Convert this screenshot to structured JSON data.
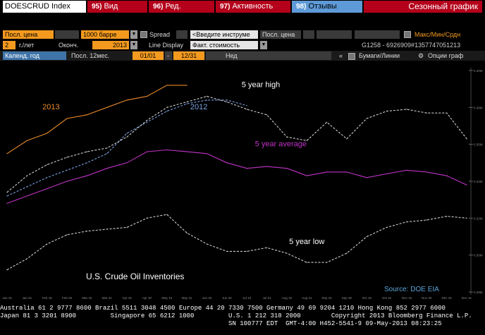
{
  "header": {
    "ticker": "DOESCRUD Index",
    "menu": [
      {
        "num": "95)",
        "label": "Вид"
      },
      {
        "num": "96)",
        "label": "Ред."
      },
      {
        "num": "97)",
        "label": "Активность"
      },
      {
        "num": "98)",
        "label": "Отзывы"
      }
    ],
    "title": "Сезонный график"
  },
  "row2": {
    "field1": "Посл. цена",
    "field2": "1000 барре",
    "spread": "Spread",
    "instrument": "<Введите инструме",
    "field3": "Посл. цена",
    "maxmin": "Макс/Мин/Срдн"
  },
  "row3": {
    "years": "2",
    "years_label": "г./лет",
    "end_label": "Оконч.",
    "end_year": "2013",
    "line_display": "Line Display",
    "value_type": "Факт. стоимость",
    "code": "G1258 - 6926909#1357747051213"
  },
  "row4": {
    "calendar": "Календ. год",
    "last12": "Посл. 12мес.",
    "from": "01/01",
    "to": "12/31",
    "ned": "Нед",
    "securities": "Бумаги/Линии",
    "chart_options": "Опции граф"
  },
  "chart_data": {
    "type": "line",
    "title": "U.S. Crude Oil Inventories",
    "source": "Source: DOE EIA",
    "x_ticks": [
      "Jan 15",
      "Jan 31",
      "Feb 15",
      "Feb 28",
      "Mar 15",
      "Mar 31",
      "Apr 15",
      "Apr 30",
      "May 15",
      "May 31",
      "Jun 15",
      "Jun 30",
      "Jul 15",
      "Jul 31",
      "Aug 15",
      "Aug 31",
      "Sep 15",
      "Sep 30",
      "Oct 15",
      "Oct 31",
      "Nov 15",
      "Nov 30",
      "Dec 15",
      "Dec 31"
    ],
    "y_ticks": [
      "0.40M",
      "0.38M",
      "0.36M",
      "0.34M",
      "0.32M",
      "0.30M",
      "0.28M"
    ],
    "ylim": [
      0.28,
      0.4
    ],
    "series": [
      {
        "name": "2013",
        "color": "#e8892a",
        "dashed": false,
        "label_x": 2.2,
        "label_y": 0.379,
        "values": [
          0.355,
          0.362,
          0.366,
          0.374,
          0.376,
          0.38,
          0.384,
          0.386,
          0.392,
          0.392
        ]
      },
      {
        "name": "2012",
        "color": "#7a9fe0",
        "dashed": true,
        "label_x": 9.6,
        "label_y": 0.379,
        "values": [
          0.332,
          0.337,
          0.342,
          0.346,
          0.35,
          0.355,
          0.366,
          0.372,
          0.378,
          0.382,
          0.384,
          0.384,
          0.381
        ]
      },
      {
        "name": "5 year high",
        "color": "#d0d0d0",
        "dashed": true,
        "label_x": 12.7,
        "label_y": 0.391,
        "values": [
          0.334,
          0.343,
          0.349,
          0.353,
          0.356,
          0.358,
          0.364,
          0.373,
          0.38,
          0.383,
          0.386,
          0.383,
          0.379,
          0.376,
          0.364,
          0.362,
          0.372,
          0.363,
          0.374,
          0.378,
          0.379,
          0.377,
          0.377,
          0.363
        ]
      },
      {
        "name": "5 year average",
        "color": "#c033c8",
        "dashed": false,
        "label_x": 13.7,
        "label_y": 0.359,
        "values": [
          0.328,
          0.332,
          0.336,
          0.34,
          0.343,
          0.347,
          0.35,
          0.356,
          0.357,
          0.356,
          0.355,
          0.35,
          0.347,
          0.348,
          0.347,
          0.343,
          0.345,
          0.345,
          0.342,
          0.344,
          0.346,
          0.345,
          0.343,
          0.338
        ]
      },
      {
        "name": "5 year low",
        "color": "#d0d0d0",
        "dashed": true,
        "label_x": 15.0,
        "label_y": 0.306,
        "values": [
          0.292,
          0.298,
          0.306,
          0.311,
          0.313,
          0.314,
          0.315,
          0.32,
          0.322,
          0.312,
          0.306,
          0.302,
          0.302,
          0.304,
          0.301,
          0.296,
          0.296,
          0.301,
          0.31,
          0.315,
          0.318,
          0.319,
          0.321,
          0.32
        ]
      }
    ]
  },
  "footer": {
    "line1": "Australia 61 2 9777 8600 Brazil 5511 3048 4500 Europe 44 20 7330 7500 Germany 49 69 9204 1210 Hong Kong 852 2977 6000",
    "line2": "Japan 81 3 3201 8900         Singapore 65 6212 1000         U.S. 1 212 318 2000        Copyright 2013 Bloomberg Finance L.P.",
    "line3": "                                                            SN 100777 EDT  GMT-4:00 H452-5541-9 09-May-2013 08:23:25"
  }
}
